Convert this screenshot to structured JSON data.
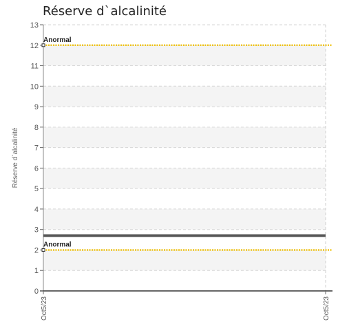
{
  "chart_data": {
    "type": "line",
    "title": "Réserve d`alcalinité",
    "xlabel": "",
    "ylabel": "Réserve d`alcalinité",
    "ylim": [
      0,
      13
    ],
    "yticks": [
      "0",
      "1",
      "2",
      "3",
      "4",
      "5",
      "6",
      "7",
      "8",
      "9",
      "10",
      "11",
      "12",
      "13"
    ],
    "xticks": [
      "Oct5/23",
      "Oct5/23"
    ],
    "grid": true,
    "series": [
      {
        "values": [
          2.7,
          2.7
        ],
        "color": "#555555"
      }
    ],
    "thresholds": [
      {
        "label": "Anormal",
        "value": 12,
        "color": "#f0c419"
      },
      {
        "label": "Anormal",
        "value": 2,
        "color": "#f0c419"
      }
    ]
  }
}
